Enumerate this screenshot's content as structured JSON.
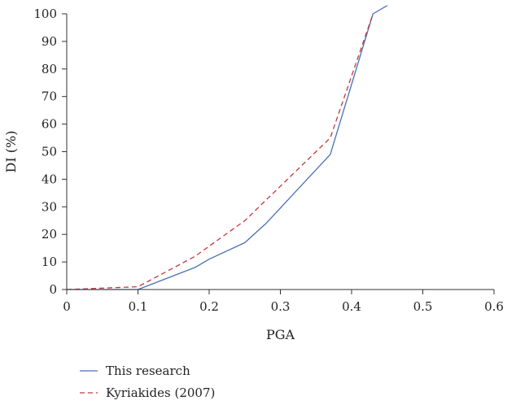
{
  "chart_data": {
    "type": "line",
    "title": "",
    "xlabel": "PGA",
    "ylabel": "DI (%)",
    "xlim": [
      0,
      0.6
    ],
    "ylim": [
      0,
      100
    ],
    "x_ticks": [
      "0",
      "0.1",
      "0.2",
      "0.3",
      "0.4",
      "0.5",
      "0.6"
    ],
    "y_ticks": [
      "0",
      "10",
      "20",
      "30",
      "40",
      "50",
      "60",
      "70",
      "80",
      "90",
      "100"
    ],
    "grid": false,
    "legend_position": "bottom-left",
    "series": [
      {
        "name": "This research",
        "color": "#4a6fb5",
        "line_style": "solid",
        "x": [
          0,
          0.1,
          0.18,
          0.2,
          0.25,
          0.28,
          0.37,
          0.43,
          0.45
        ],
        "y": [
          0,
          0,
          8,
          11,
          17,
          24,
          49,
          100,
          103
        ]
      },
      {
        "name": "Kyriakides (2007)",
        "color": "#c0383c",
        "line_style": "dashed",
        "x": [
          0,
          0.1,
          0.18,
          0.25,
          0.37,
          0.43
        ],
        "y": [
          0,
          1,
          12,
          25,
          55,
          100
        ]
      }
    ]
  }
}
